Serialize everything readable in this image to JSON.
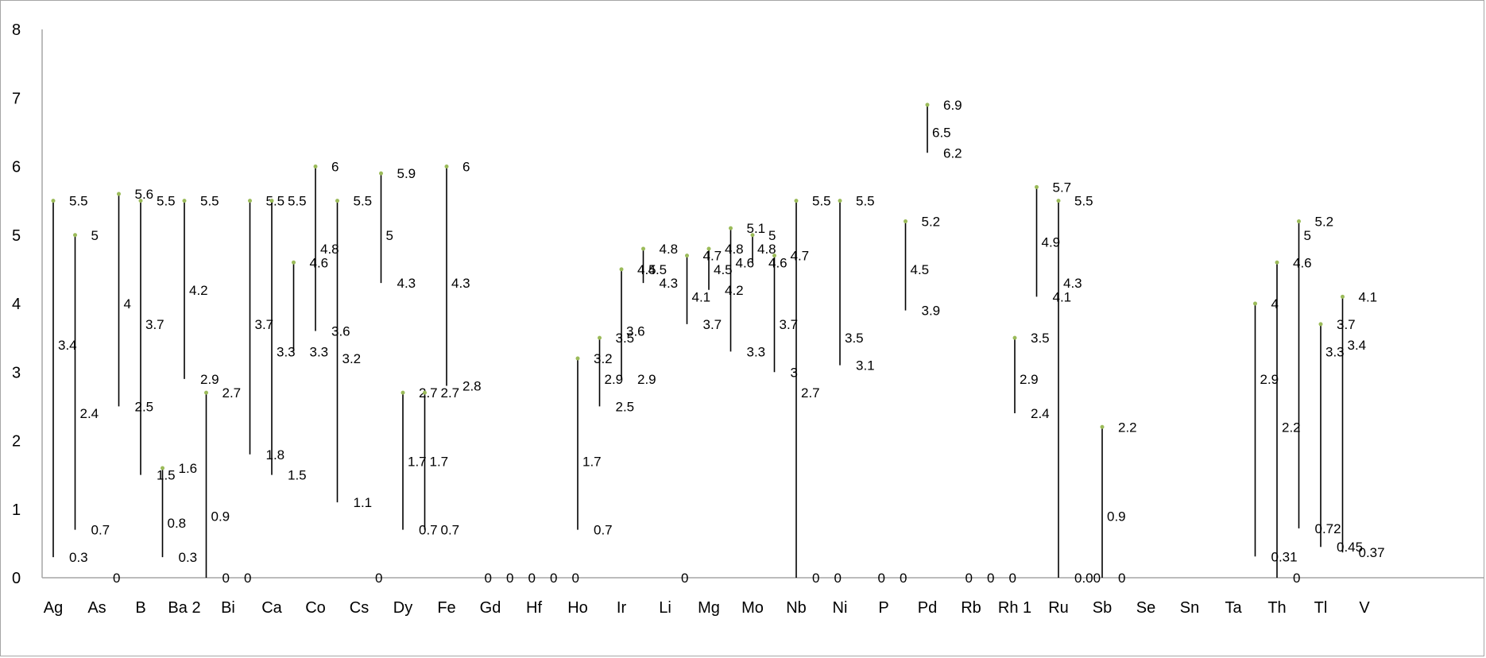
{
  "chart_data": {
    "type": "hi-lo",
    "title": "",
    "xlabel": "",
    "ylabel": "",
    "ylim": [
      0,
      8
    ],
    "yticks": [
      0,
      1,
      2,
      3,
      4,
      5,
      6,
      7,
      8
    ],
    "grid": false,
    "legend": "none",
    "colors": {
      "line": "#000000",
      "marker": "#9bbb59",
      "axis": "#a6a6a6",
      "text": "#000000"
    },
    "categories": [
      "Ag",
      "As",
      "B",
      "Ba 2",
      "Bi",
      "Ca",
      "Co",
      "Cs",
      "Dy",
      "Fe",
      "Gd",
      "Hf",
      "Ho",
      "Ir",
      "Li",
      "Mg",
      "Mo",
      "Nb",
      "Ni",
      "P",
      "Pd",
      "Rb",
      "Rh 1",
      "Ru",
      "Sb",
      "Se",
      "Sn",
      "Ta",
      "Th",
      "Tl",
      "V"
    ],
    "points": [
      {
        "x": 0.25,
        "high": 5.5,
        "low": 0.3,
        "mid": 3.4,
        "high_label": "5.5",
        "low_label": "0.3",
        "mid_label": "3.4"
      },
      {
        "x": 0.75,
        "high": 5,
        "low": 0.7,
        "mid": 2.4,
        "high_label": "5",
        "low_label": "0.7",
        "mid_label": "2.4"
      },
      {
        "x": 1.25,
        "high": 0,
        "low": 0,
        "high_label": "0"
      },
      {
        "x": 1.75,
        "high": 5.6,
        "low": 2.5,
        "mid": 4,
        "high_label": "5.6",
        "low_label": "2.5",
        "mid_label": "4"
      },
      {
        "x": 2.25,
        "high": 5.5,
        "low": 1.5,
        "mid": 3.7,
        "high_label": "5.5",
        "low_label": "1.5",
        "mid_label": "3.7"
      },
      {
        "x": 2.75,
        "high": 1.6,
        "low": 0.3,
        "mid": 0.8,
        "high_label": "1.6",
        "low_label": "0.3",
        "mid_label": "0.8"
      },
      {
        "x": 3.25,
        "high": 5.5,
        "low": 2.9,
        "mid": 4.2,
        "high_label": "5.5",
        "low_label": "2.9",
        "mid_label": "4.2"
      },
      {
        "x": 3.75,
        "high": 2.7,
        "low": 0,
        "mid": 0.9,
        "high_label": "2.7",
        "low_label": "0",
        "mid_label": "0.9"
      },
      {
        "x": 4.25,
        "high": 0,
        "low": 0,
        "high_label": "0"
      },
      {
        "x": 4.75,
        "high": 5.5,
        "low": 1.8,
        "mid": 3.7,
        "high_label": "5.5",
        "low_label": "1.8",
        "mid_label": "3.7"
      },
      {
        "x": 5.25,
        "high": 5.5,
        "low": 1.5,
        "mid": 3.3,
        "high_label": "5.5",
        "low_label": "1.5",
        "mid_label": "3.3"
      },
      {
        "x": 5.75,
        "high": 4.6,
        "low": 3.3,
        "high_label": "4.6",
        "low_label": "3.3"
      },
      {
        "x": 6.25,
        "high": 6,
        "low": 3.6,
        "mid": 4.8,
        "high_label": "6",
        "low_label": "3.6",
        "mid_label": "4.8"
      },
      {
        "x": 6.75,
        "high": 5.5,
        "low": 1.1,
        "mid": 3.2,
        "high_label": "5.5",
        "low_label": "1.1",
        "mid_label": "3.2"
      },
      {
        "x": 7.25,
        "high": 0,
        "low": 0,
        "high_label": "0"
      },
      {
        "x": 7.75,
        "high": 5.9,
        "low": 4.3,
        "mid": 5,
        "high_label": "5.9",
        "low_label": "4.3",
        "mid_label": "5"
      },
      {
        "x": 8.25,
        "high": 2.7,
        "low": 0.7,
        "mid": 1.7,
        "high_label": "2.7",
        "low_label": "0.7",
        "mid_label": "1.7"
      },
      {
        "x": 8.75,
        "high": 2.7,
        "low": 0.7,
        "mid": 1.7,
        "high_label": "2.7",
        "low_label": "0.7",
        "mid_label": "1.7"
      },
      {
        "x": 9.25,
        "high": 6,
        "low": 2.8,
        "mid": 4.3,
        "high_label": "6",
        "low_label": "2.8",
        "mid_label": "4.3"
      },
      {
        "x": 9.75,
        "high": 0,
        "low": 0,
        "high_label": "0"
      },
      {
        "x": 10.25,
        "high": 0,
        "low": 0,
        "high_label": "0"
      },
      {
        "x": 10.75,
        "high": 0,
        "low": 0,
        "high_label": "0"
      },
      {
        "x": 11.25,
        "high": 0,
        "low": 0,
        "high_label": "0"
      },
      {
        "x": 11.75,
        "high": 0,
        "low": 0,
        "high_label": "0"
      },
      {
        "x": 12.25,
        "high": 3.2,
        "low": 0.7,
        "mid": 1.7,
        "high_label": "3.2",
        "low_label": "0.7",
        "mid_label": "1.7"
      },
      {
        "x": 12.75,
        "high": 3.5,
        "low": 2.5,
        "mid": 2.9,
        "high_label": "3.5",
        "low_label": "2.5",
        "mid_label": "2.9"
      },
      {
        "x": 13.25,
        "high": 4.5,
        "low": 2.9,
        "mid": 3.6,
        "high_label": "4.5",
        "low_label": "2.9",
        "mid_label": "3.6"
      },
      {
        "x": 13.75,
        "high": 4.8,
        "low": 4.3,
        "mid": 4.5,
        "high_label": "4.8",
        "low_label": "4.3",
        "mid_label": "4.5"
      },
      {
        "x": 14.25,
        "high": 0,
        "low": 0,
        "high_label": "0"
      },
      {
        "x": 14.75,
        "high": 4.7,
        "low": 3.7,
        "mid": 4.1,
        "high_label": "4.7",
        "low_label": "3.7",
        "mid_label": "4.1"
      },
      {
        "x": 15.25,
        "high": 4.8,
        "low": 4.2,
        "mid": 4.5,
        "high_label": "4.8",
        "low_label": "4.2",
        "mid_label": "4.5"
      },
      {
        "x": 15.75,
        "high": 5.1,
        "low": 3.3,
        "mid": 4.6,
        "high_label": "5.1",
        "low_label": "3.3",
        "mid_label": "4.6"
      },
      {
        "x": 16.25,
        "high": 5,
        "low": 4.6,
        "mid": 4.8,
        "high_label": "5",
        "low_label": "4.6",
        "mid_label": "4.8"
      },
      {
        "x": 16.75,
        "high": 4.7,
        "low": 3,
        "mid": 3.7,
        "high_label": "4.7",
        "low_label": "3",
        "mid_label": "3.7"
      },
      {
        "x": 17.25,
        "high": 5.5,
        "low": 0,
        "mid": 2.7,
        "high_label": "5.5",
        "low_label": "0",
        "mid_label": "2.7"
      },
      {
        "x": 17.75,
        "high": 0,
        "low": 0,
        "high_label": "0"
      },
      {
        "x": 18.25,
        "high": 5.5,
        "low": 3.1,
        "mid": 3.5,
        "high_label": "5.5",
        "low_label": "3.1",
        "mid_label": "3.5"
      },
      {
        "x": 18.75,
        "high": 0,
        "low": 0,
        "high_label": "0"
      },
      {
        "x": 19.25,
        "high": 0,
        "low": 0,
        "high_label": "0"
      },
      {
        "x": 19.75,
        "high": 5.2,
        "low": 3.9,
        "mid": 4.5,
        "high_label": "5.2",
        "low_label": "3.9",
        "mid_label": "4.5"
      },
      {
        "x": 20.25,
        "high": 6.9,
        "low": 6.2,
        "mid": 6.5,
        "high_label": "6.9",
        "low_label": "6.2",
        "mid_label": "6.5"
      },
      {
        "x": 20.75,
        "high": 0,
        "low": 0,
        "high_label": "0"
      },
      {
        "x": 21.25,
        "high": 0,
        "low": 0,
        "high_label": "0"
      },
      {
        "x": 21.75,
        "high": 0,
        "low": 0,
        "high_label": "0"
      },
      {
        "x": 22.25,
        "high": 3.5,
        "low": 2.4,
        "mid": 2.9,
        "high_label": "3.5",
        "low_label": "2.4",
        "mid_label": "2.9"
      },
      {
        "x": 22.75,
        "high": 5.7,
        "low": 4.1,
        "mid": 4.9,
        "high_label": "5.7",
        "low_label": "4.1",
        "mid_label": "4.9"
      },
      {
        "x": 23.25,
        "high": 5.5,
        "low": 0,
        "mid": 4.3,
        "high_label": "5.5",
        "low_label": "0.00",
        "mid_label": "4.3"
      },
      {
        "x": 24.25,
        "high": 2.2,
        "low": 0,
        "mid": 0.9,
        "high_label": "2.2",
        "low_label": "0",
        "mid_label": "0.9"
      },
      {
        "x": 27.75,
        "high": 4,
        "low": 0.31,
        "mid": 2.9,
        "high_label": "4",
        "low_label": "0.31",
        "mid_label": "2.9"
      },
      {
        "x": 28.25,
        "high": 4.6,
        "low": 0,
        "mid": 2.2,
        "high_label": "4.6",
        "low_label": "0",
        "mid_label": "2.2"
      },
      {
        "x": 28.75,
        "high": 5.2,
        "low": 0.72,
        "mid": 5,
        "high_label": "5.2",
        "low_label": "0.72",
        "mid_label": "5"
      },
      {
        "x": 29.25,
        "high": 3.7,
        "low": 0.45,
        "mid": 3.3,
        "high_label": "3.7",
        "low_label": "0.45",
        "mid_label": "3.3"
      },
      {
        "x": 29.75,
        "high": 4.1,
        "low": 0.37,
        "mid": 3.4,
        "high_label": "4.1",
        "low_label": "0.37",
        "mid_label": "3.4"
      }
    ]
  }
}
